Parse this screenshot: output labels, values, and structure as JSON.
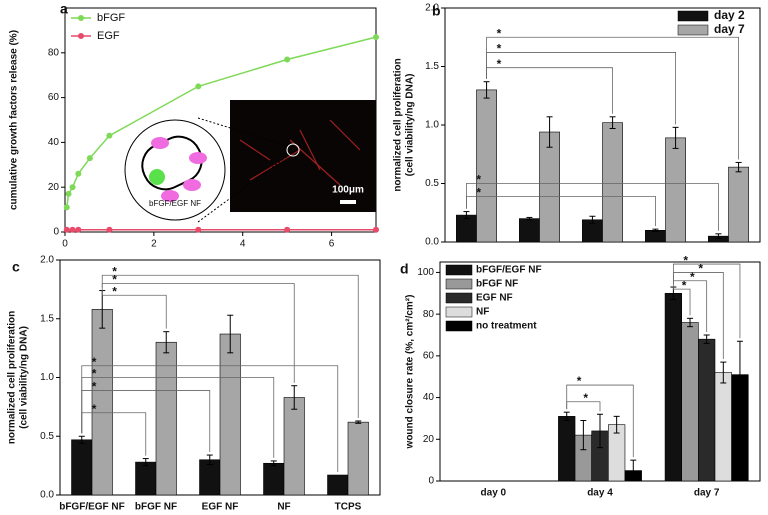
{
  "chart_data": [
    {
      "type": "line",
      "label": "a",
      "ylabel": "cumulative growth factors release (%)",
      "xlim": [
        0,
        7
      ],
      "xticks": [
        0,
        2,
        4,
        6
      ],
      "ylim": [
        0,
        100
      ],
      "yticks": [
        0,
        20,
        40,
        60,
        80
      ],
      "legend": "upper left",
      "series": [
        {
          "name": "bFGF",
          "color": "#7ed957",
          "x": [
            0.04,
            0.08,
            0.17,
            0.3,
            0.56,
            1,
            3,
            5,
            7
          ],
          "values": [
            11,
            17,
            20,
            26,
            33,
            43,
            65,
            77,
            87
          ]
        },
        {
          "name": "EGF",
          "color": "#e84a6a",
          "x": [
            0.04,
            0.17,
            0.3,
            1,
            3,
            5,
            7
          ],
          "values": [
            1,
            1,
            1,
            1,
            1,
            1,
            1
          ]
        }
      ],
      "inset_labels": [
        "bFGF/EGF NF",
        "100μm"
      ]
    },
    {
      "type": "bar",
      "label": "b",
      "ylabel": [
        "normalized cell proliferation",
        "(cell viability/ng DNA)"
      ],
      "categories": [
        null,
        null,
        null,
        null,
        null
      ],
      "ylim": [
        0,
        2
      ],
      "yticks": [
        {
          "value": 0,
          "label": "0.0"
        },
        {
          "value": 0.5,
          "label": "0.5"
        },
        {
          "value": 1,
          "label": "1.0"
        },
        {
          "value": 1.5,
          "label": "1.5"
        },
        {
          "value": 2,
          "label": "2.0"
        }
      ],
      "legend": "upper right",
      "series": [
        {
          "name": "day 2",
          "color": "#111111",
          "values": [
            0.23,
            0.2,
            0.19,
            0.1,
            0.05
          ],
          "errors": [
            0.03,
            0.01,
            0.03,
            0.01,
            0.02
          ]
        },
        {
          "name": "day 7",
          "color": "#a6a6a6",
          "values": [
            1.3,
            0.94,
            1.02,
            0.89,
            0.64
          ],
          "errors": [
            0.07,
            0.13,
            0.05,
            0.09,
            0.04
          ]
        }
      ],
      "brackets": [
        {
          "from": [
            0,
            1
          ],
          "to": [
            4,
            1
          ],
          "y": 1.75,
          "label": "*"
        },
        {
          "from": [
            0,
            1
          ],
          "to": [
            3,
            1
          ],
          "y": 1.62,
          "label": "*"
        },
        {
          "from": [
            0,
            1
          ],
          "to": [
            2,
            1
          ],
          "y": 1.49,
          "label": "*"
        },
        {
          "from": [
            0,
            0
          ],
          "to": [
            4,
            0
          ],
          "y": 0.5,
          "label": "*"
        },
        {
          "from": [
            0,
            0
          ],
          "to": [
            3,
            0
          ],
          "y": 0.39,
          "label": "*"
        }
      ]
    },
    {
      "type": "bar",
      "label": "c",
      "ylabel": [
        "normalized cell proliferation",
        "(cell viability/ng DNA)"
      ],
      "categories": [
        "bFGF/EGF NF",
        "bFGF NF",
        "EGF NF",
        "NF",
        "TCPS"
      ],
      "ylim": [
        0,
        2
      ],
      "yticks": [
        {
          "value": 0,
          "label": "0.0"
        },
        {
          "value": 0.5,
          "label": "0.5"
        },
        {
          "value": 1,
          "label": "1.0"
        },
        {
          "value": 1.5,
          "label": "1.5"
        },
        {
          "value": 2,
          "label": "2.0"
        }
      ],
      "series": [
        {
          "color": "#111111",
          "values": [
            0.47,
            0.28,
            0.3,
            0.27,
            0.17
          ],
          "errors": [
            0.03,
            0.03,
            0.04,
            0.02,
            0
          ]
        },
        {
          "color": "#a6a6a6",
          "values": [
            1.58,
            1.3,
            1.37,
            0.83,
            0.62
          ],
          "errors": [
            0.16,
            0.09,
            0.16,
            0.1,
            0.01
          ]
        }
      ],
      "brackets": [
        {
          "from": [
            0,
            1
          ],
          "to": [
            4,
            1
          ],
          "y": 1.87,
          "label": "*"
        },
        {
          "from": [
            0,
            1
          ],
          "to": [
            3,
            1
          ],
          "y": 1.8,
          "label": "*"
        },
        {
          "from": [
            0,
            1
          ],
          "to": [
            1,
            1
          ],
          "y": 1.7,
          "label": "*"
        },
        {
          "from": [
            0,
            0
          ],
          "to": [
            4,
            0
          ],
          "y": 1.1,
          "label": "*"
        },
        {
          "from": [
            0,
            0
          ],
          "to": [
            3,
            0
          ],
          "y": 1.0,
          "label": "*"
        },
        {
          "from": [
            0,
            0
          ],
          "to": [
            2,
            0
          ],
          "y": 0.89,
          "label": "*"
        },
        {
          "from": [
            0,
            0
          ],
          "to": [
            1,
            0
          ],
          "y": 0.7,
          "label": "*"
        }
      ]
    },
    {
      "type": "bar",
      "label": "d",
      "ylabel": "wound closure rate (%, cm²/cm²)",
      "categories": [
        "day 0",
        "day 4",
        "day 7"
      ],
      "ylim": [
        0,
        105
      ],
      "yticks": [
        0,
        20,
        40,
        60,
        80,
        100
      ],
      "legend": "upper left",
      "series": [
        {
          "name": "bFGF/EGF NF",
          "color": "#111111",
          "values": [
            0,
            31,
            90
          ],
          "errors": [
            0,
            2,
            3
          ]
        },
        {
          "name": "bFGF NF",
          "color": "#999999",
          "values": [
            0,
            22,
            76
          ],
          "errors": [
            0,
            7,
            2
          ]
        },
        {
          "name": "EGF NF",
          "color": "#2a2a2a",
          "values": [
            0,
            24,
            68
          ],
          "errors": [
            0,
            8,
            2
          ]
        },
        {
          "name": "NF",
          "color": "#dddddd",
          "values": [
            0,
            27,
            52
          ],
          "errors": [
            0,
            4,
            5
          ]
        },
        {
          "name": "no treatment",
          "color": "#000000",
          "values": [
            0,
            5,
            51
          ],
          "errors": [
            0,
            5,
            16
          ]
        }
      ],
      "brackets": [
        {
          "from": [
            1,
            0
          ],
          "to": [
            1,
            4
          ],
          "y": 46,
          "label": "*"
        },
        {
          "from": [
            1,
            0
          ],
          "to": [
            1,
            2
          ],
          "y": 38,
          "label": "*"
        },
        {
          "from": [
            2,
            0
          ],
          "to": [
            2,
            4
          ],
          "y": 104,
          "label": "*"
        },
        {
          "from": [
            2,
            0
          ],
          "to": [
            2,
            3
          ],
          "y": 100,
          "label": "*"
        },
        {
          "from": [
            2,
            0
          ],
          "to": [
            2,
            2
          ],
          "y": 96,
          "label": "*"
        },
        {
          "from": [
            2,
            0
          ],
          "to": [
            2,
            1
          ],
          "y": 92,
          "label": "*"
        }
      ]
    }
  ]
}
